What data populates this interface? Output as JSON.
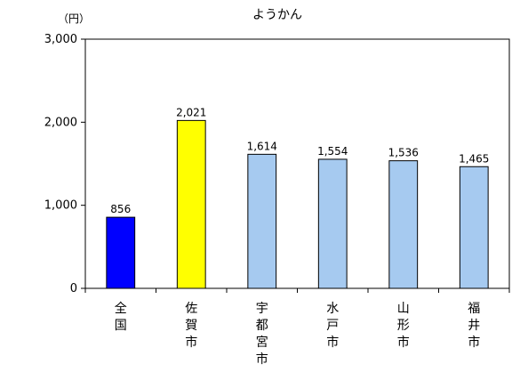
{
  "chart_data": {
    "type": "bar",
    "title": "ようかん",
    "unit_label": "（円）",
    "categories": [
      "全国",
      "佐賀市",
      "宇都宮市",
      "水戸市",
      "山形市",
      "福井市"
    ],
    "values": [
      856,
      2021,
      1614,
      1554,
      1536,
      1465
    ],
    "data_labels": [
      "856",
      "2,021",
      "1,614",
      "1,554",
      "1,536",
      "1,465"
    ],
    "ylim": [
      0,
      3000
    ],
    "yticks": [
      0,
      1000,
      2000,
      3000
    ],
    "ytick_labels": [
      "0",
      "1,000",
      "2,000",
      "3,000"
    ],
    "xlabel": "",
    "ylabel": "",
    "grid": false,
    "legend": "none",
    "bar_colors": [
      "#0000ff",
      "#ffff00",
      "#a6caf0",
      "#a6caf0",
      "#a6caf0",
      "#a6caf0"
    ],
    "bar_outline": "#000000"
  }
}
